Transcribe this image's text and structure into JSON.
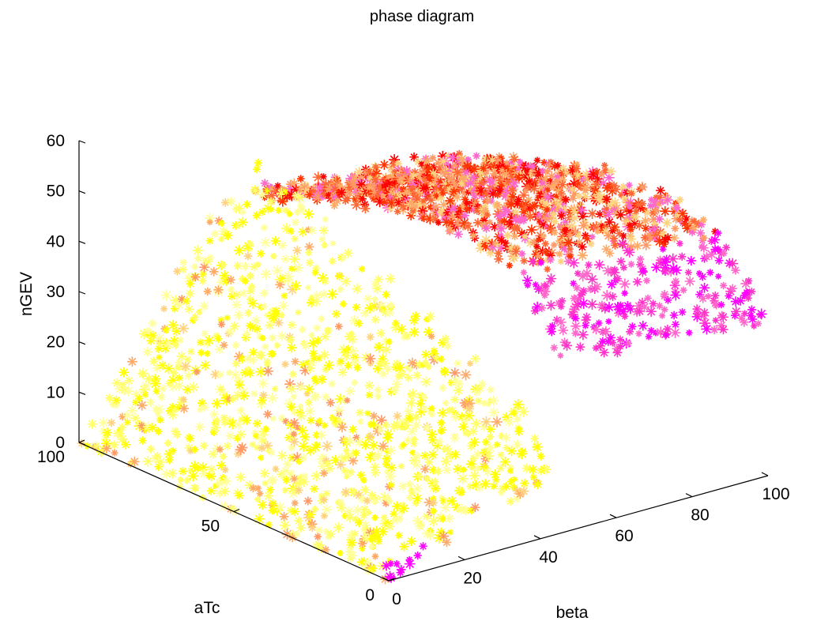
{
  "chart_data": {
    "type": "scatter",
    "title": "phase diagram",
    "xlabel": "beta",
    "ylabel": "aTc",
    "zlabel": "nGEV",
    "xlim": [
      0,
      100
    ],
    "ylim": [
      0,
      100
    ],
    "zlim": [
      0,
      60
    ],
    "x_ticks": [
      "0",
      "20",
      "40",
      "60",
      "80",
      "100"
    ],
    "y_ticks": [
      "0",
      "50",
      "100"
    ],
    "z_ticks": [
      "0",
      "10",
      "20",
      "30",
      "40",
      "50",
      "60"
    ],
    "marker": "asterisk",
    "grid": false,
    "colors": [
      "#ffff00",
      "#ffff66",
      "#ffff99",
      "#ffd280",
      "#ffaa66",
      "#ff9966",
      "#ff6633",
      "#ff3300",
      "#ff0000",
      "#ff66cc",
      "#ff33cc",
      "#ff00ff"
    ],
    "surface_description_points": [
      {
        "beta": 0,
        "aTc": 0,
        "nGEV": 0
      },
      {
        "beta": 0,
        "aTc": 100,
        "nGEV": 0
      },
      {
        "beta": 0,
        "aTc": 50,
        "nGEV": 0
      },
      {
        "beta": 20,
        "aTc": 0,
        "nGEV": 12
      },
      {
        "beta": 20,
        "aTc": 50,
        "nGEV": 30
      },
      {
        "beta": 20,
        "aTc": 100,
        "nGEV": 45
      },
      {
        "beta": 50,
        "aTc": 0,
        "nGEV": 30
      },
      {
        "beta": 50,
        "aTc": 50,
        "nGEV": 48
      },
      {
        "beta": 50,
        "aTc": 100,
        "nGEV": 50
      },
      {
        "beta": 100,
        "aTc": 0,
        "nGEV": 38
      },
      {
        "beta": 100,
        "aTc": 50,
        "nGEV": 40
      },
      {
        "beta": 100,
        "aTc": 100,
        "nGEV": 45
      }
    ]
  }
}
